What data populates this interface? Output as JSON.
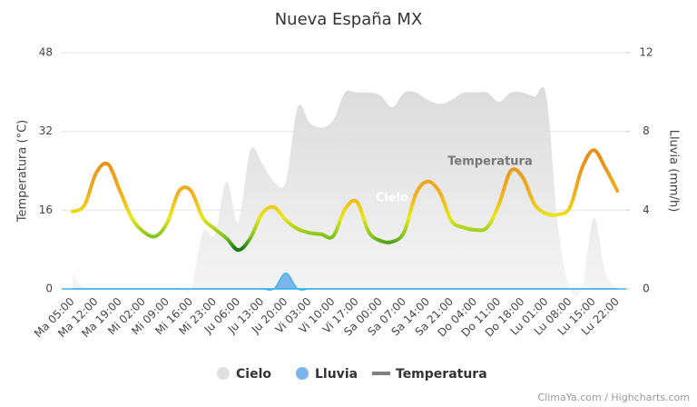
{
  "chart_data": {
    "type": "line",
    "title": "Nueva España MX",
    "y_label": "Temperatura (°C)",
    "y2_label": "Lluvia (mm/h)",
    "credits": "ClimaYa.com / Highcharts.com",
    "categories": [
      "Ma 05:00",
      null,
      "Ma 12:00",
      null,
      "Ma 19:00",
      null,
      "Mi 02:00",
      null,
      "Mi 09:00",
      null,
      "Mi 16:00",
      null,
      "Mi 23:00",
      null,
      "Ju 06:00",
      null,
      "Ju 13:00",
      null,
      "Ju 20:00",
      null,
      "Vi 03:00",
      null,
      "Vi 10:00",
      null,
      "Vi 17:00",
      null,
      "Sa 00:00",
      null,
      "Sa 07:00",
      null,
      "Sa 14:00",
      null,
      "Sa 21:00",
      null,
      "Do 04:00",
      null,
      "Do 11:00",
      null,
      "Do 18:00",
      null,
      "Lu 01:00",
      null,
      "Lu 08:00",
      null,
      "Lu 15:00",
      null,
      "Lu 22:00"
    ],
    "series": [
      {
        "name": "Cielo",
        "type": "area",
        "color": "#e0e0e0",
        "values": [
          3,
          0,
          0,
          0,
          0,
          0,
          0,
          0,
          0,
          0,
          0,
          11.6,
          11,
          21.8,
          13.5,
          28.2,
          25.5,
          21.8,
          21.8,
          36.9,
          33.8,
          32.8,
          34.3,
          39.9,
          39.9,
          39.9,
          39.3,
          36.9,
          39.9,
          39.9,
          38.4,
          37.6,
          38.4,
          39.9,
          39.9,
          39.9,
          38,
          39.9,
          39.9,
          39.1,
          39.1,
          12.5,
          0,
          0,
          14.4,
          3.3,
          0
        ]
      },
      {
        "name": "Lluvia",
        "type": "area",
        "axis": "y2",
        "color": "#7cb5ec",
        "values": [
          0,
          0,
          0,
          0,
          0,
          0,
          0,
          0,
          0,
          0,
          0,
          0,
          0,
          0,
          0,
          0,
          0,
          0,
          0.8,
          0,
          0,
          0,
          0,
          0,
          0,
          0,
          0,
          0,
          0,
          0,
          0,
          0,
          0,
          0,
          0,
          0,
          0,
          0,
          0,
          0,
          0,
          0,
          0,
          0,
          0,
          0,
          0
        ]
      },
      {
        "name": "Temperatura",
        "type": "line",
        "color": "#808080",
        "values": [
          15.7,
          17,
          23.6,
          25.3,
          19.9,
          14.4,
          11.6,
          10.7,
          13.5,
          19.9,
          19.9,
          14.4,
          12.2,
          10.3,
          7.9,
          10.3,
          15.3,
          16.6,
          14,
          12.2,
          11.4,
          11.1,
          10.7,
          16.2,
          17.7,
          11.6,
          9.8,
          9.6,
          11.6,
          19.4,
          21.8,
          19.6,
          13.8,
          12.5,
          12,
          12.5,
          17.2,
          24,
          22.7,
          17.2,
          15.3,
          15.1,
          16.6,
          24.5,
          28.2,
          24.5,
          19.9
        ]
      }
    ],
    "ylim": [
      0,
      48
    ],
    "yticks": [
      0,
      16,
      32,
      48
    ],
    "y2lim": [
      0,
      12
    ],
    "y2ticks": [
      0,
      4,
      8,
      12
    ],
    "grid": true
  }
}
